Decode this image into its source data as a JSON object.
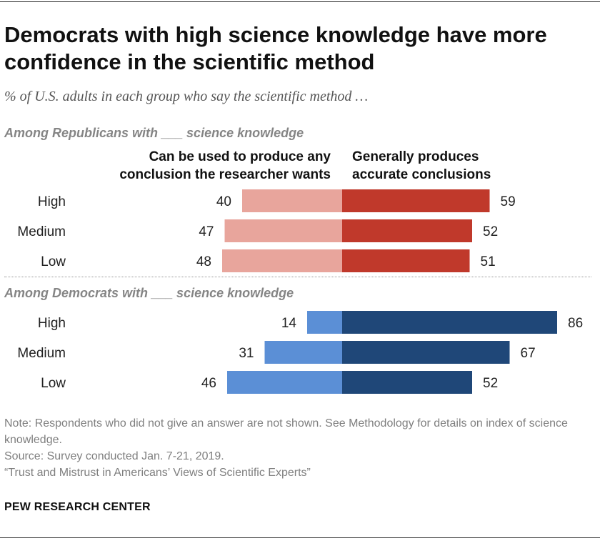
{
  "title": "Democrats with high science knowledge have more confidence in the scientific method",
  "subtitle": "% of U.S. adults in each group who say the scientific method …",
  "column_headers": {
    "left_line1": "Can be used to produce any",
    "left_line2": "conclusion the researcher wants",
    "right_line1": "Generally produces",
    "right_line2": "accurate conclusions"
  },
  "group_headers": {
    "republicans": "Among Republicans with ___ science knowledge",
    "democrats": "Among Democrats with ___ science knowledge"
  },
  "colors": {
    "rep_left": "#e8a59c",
    "rep_right": "#c0392b",
    "dem_left": "#5b8fd6",
    "dem_right": "#1f4778"
  },
  "chart_data": {
    "type": "bar",
    "orientation": "horizontal-diverging",
    "series_names": [
      "Can be used to produce any conclusion the researcher wants",
      "Generally produces accurate conclusions"
    ],
    "groups": [
      {
        "name": "Among Republicans with ___ science knowledge",
        "key": "rep",
        "categories": [
          "High",
          "Medium",
          "Low"
        ],
        "left_values": [
          40,
          47,
          48
        ],
        "right_values": [
          59,
          52,
          51
        ]
      },
      {
        "name": "Among Democrats with ___ science knowledge",
        "key": "dem",
        "categories": [
          "High",
          "Medium",
          "Low"
        ],
        "left_values": [
          14,
          31,
          46
        ],
        "right_values": [
          86,
          67,
          52
        ]
      }
    ],
    "xlim": [
      0,
      100
    ],
    "grid": false,
    "legend": "column headers above bars"
  },
  "notes": {
    "note": "Note: Respondents who did not give an answer are not shown. See Methodology for details on index of science knowledge.",
    "source": "Source: Survey conducted Jan. 7-21, 2019.",
    "report": "“Trust and Mistrust in Americans’ Views of Scientific Experts”"
  },
  "brand": "PEW RESEARCH CENTER"
}
